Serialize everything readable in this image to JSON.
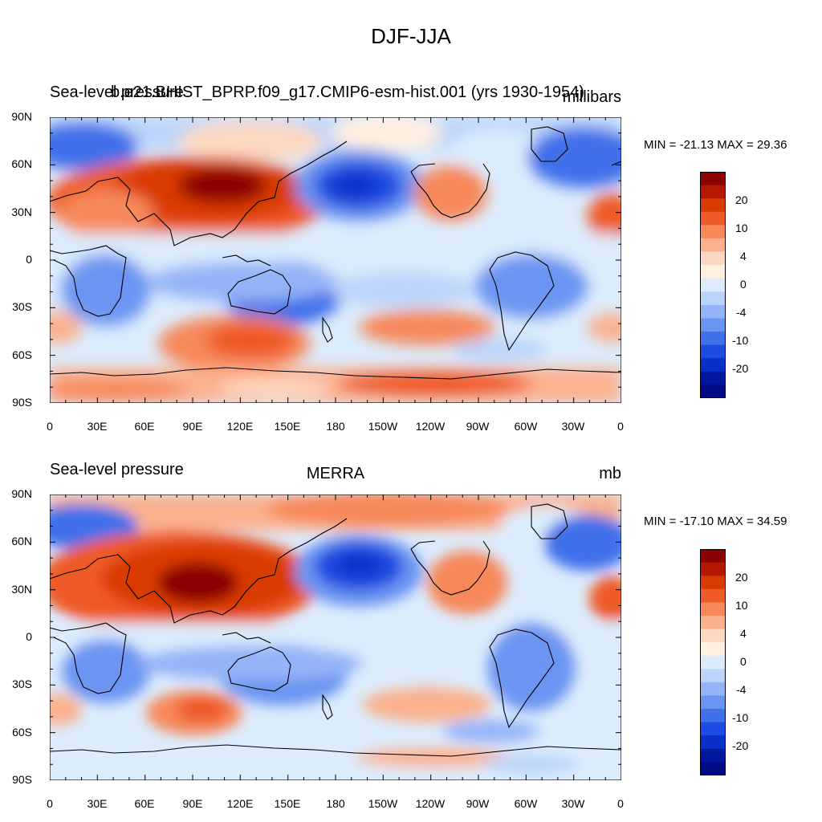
{
  "title": "DJF-JJA",
  "x_ticks": [
    "0",
    "30E",
    "60E",
    "90E",
    "120E",
    "150E",
    "180",
    "150W",
    "120W",
    "90W",
    "60W",
    "30W",
    "0"
  ],
  "y_ticks": [
    "90N",
    "60N",
    "30N",
    "0",
    "30S",
    "60S",
    "90S"
  ],
  "colorbar_labels": [
    "20",
    "10",
    "4",
    "0",
    "-4",
    "-10",
    "-20"
  ],
  "colorbar_colors": [
    "#8b0000",
    "#b41800",
    "#d93a00",
    "#ee5a28",
    "#f7885a",
    "#fbb08e",
    "#fdd8c0",
    "#fff0e0",
    "#dcecfc",
    "#bcd4fa",
    "#94b4f8",
    "#6c94f2",
    "#4070ea",
    "#1c4ce0",
    "#0830c8",
    "#0018a0",
    "#000a84"
  ],
  "panels": [
    {
      "left_title": "Sea-level pressure",
      "center_title": "b.e21.BHIST_BPRP.f09_g17.CMIP6-esm-hist.001 (yrs 1930-1954)",
      "right_title": "millibars",
      "min": "-21.13",
      "max": "29.36",
      "minmax_text": "MIN = -21.13 MAX =  29.36"
    },
    {
      "left_title": "Sea-level pressure",
      "center_title": "MERRA",
      "right_title": "mb",
      "min": "-17.10",
      "max": "34.59",
      "minmax_text": "MIN = -17.10 MAX =  34.59"
    }
  ]
}
